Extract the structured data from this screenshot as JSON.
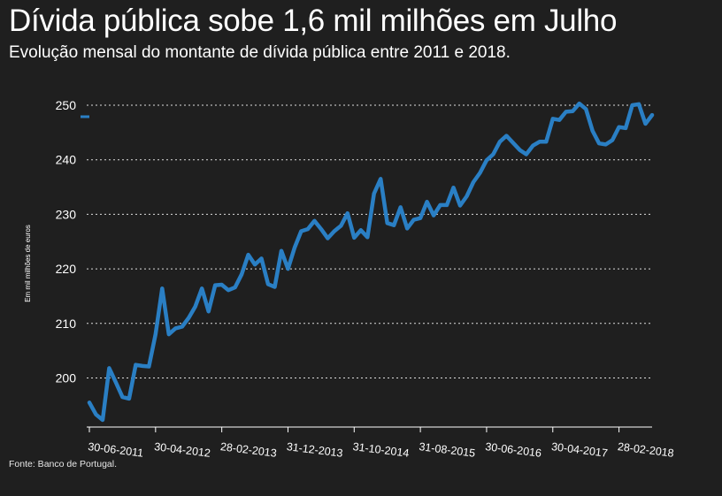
{
  "header": {
    "title": "Dívida pública sobe 1,6 mil milhões em Julho",
    "subtitle": "Evolução mensal do montante de dívida pública entre 2011 e 2018."
  },
  "footer": {
    "source": "Fonte: Banco de Portugal."
  },
  "colors": {
    "background": "#1f1f1f",
    "line": "#2a7fc4",
    "grid": "#ffffff",
    "text": "#ffffff"
  },
  "chart_data": {
    "type": "line",
    "title": "Dívida pública sobe 1,6 mil milhões em Julho",
    "subtitle": "Evolução mensal do montante de dívida pública entre 2011 e 2018.",
    "xlabel": "",
    "ylabel": "Em mil milhões de euros",
    "ylim": [
      190,
      253
    ],
    "yticks": [
      200,
      210,
      220,
      230,
      240,
      250
    ],
    "ytick_labels": [
      "200",
      "210",
      "220",
      "230",
      "240",
      "250"
    ],
    "grid": "horizontal dotted",
    "legend": "none",
    "x_tick_labels": [
      "30-06-2011",
      "30-04-2012",
      "28-02-2013",
      "31-12-2013",
      "31-10-2014",
      "31-08-2015",
      "30-06-2016",
      "30-04-2017",
      "28-02-2018"
    ],
    "x_tick_indices": [
      0,
      10,
      20,
      30,
      40,
      50,
      60,
      70,
      80
    ],
    "series": [
      {
        "values": [
          195.5,
          193.3,
          192.3,
          201.8,
          199.2,
          196.5,
          196.2,
          202.4,
          202.2,
          202.1,
          208.0,
          216.4,
          208.0,
          209.1,
          209.4,
          211.0,
          213.1,
          216.4,
          212.2,
          217.0,
          217.1,
          216.1,
          216.6,
          219.0,
          222.6,
          220.8,
          221.9,
          217.2,
          216.7,
          223.3,
          220.0,
          223.9,
          226.9,
          227.3,
          228.8,
          227.3,
          225.6,
          226.9,
          227.9,
          230.2,
          225.7,
          227.1,
          225.8,
          233.8,
          236.5,
          228.4,
          228.0,
          231.3,
          227.4,
          229.0,
          229.3,
          232.3,
          229.8,
          231.7,
          231.7,
          234.9,
          231.6,
          233.3,
          235.9,
          237.6,
          239.9,
          241.0,
          243.3,
          244.4,
          243.1,
          241.8,
          241.0,
          242.6,
          243.3,
          243.3,
          247.5,
          247.3,
          248.8,
          248.9,
          250.3,
          249.3,
          245.3,
          243.0,
          242.8,
          243.6,
          246.0,
          245.8,
          250.0,
          250.2,
          246.6,
          248.2
        ]
      }
    ]
  }
}
